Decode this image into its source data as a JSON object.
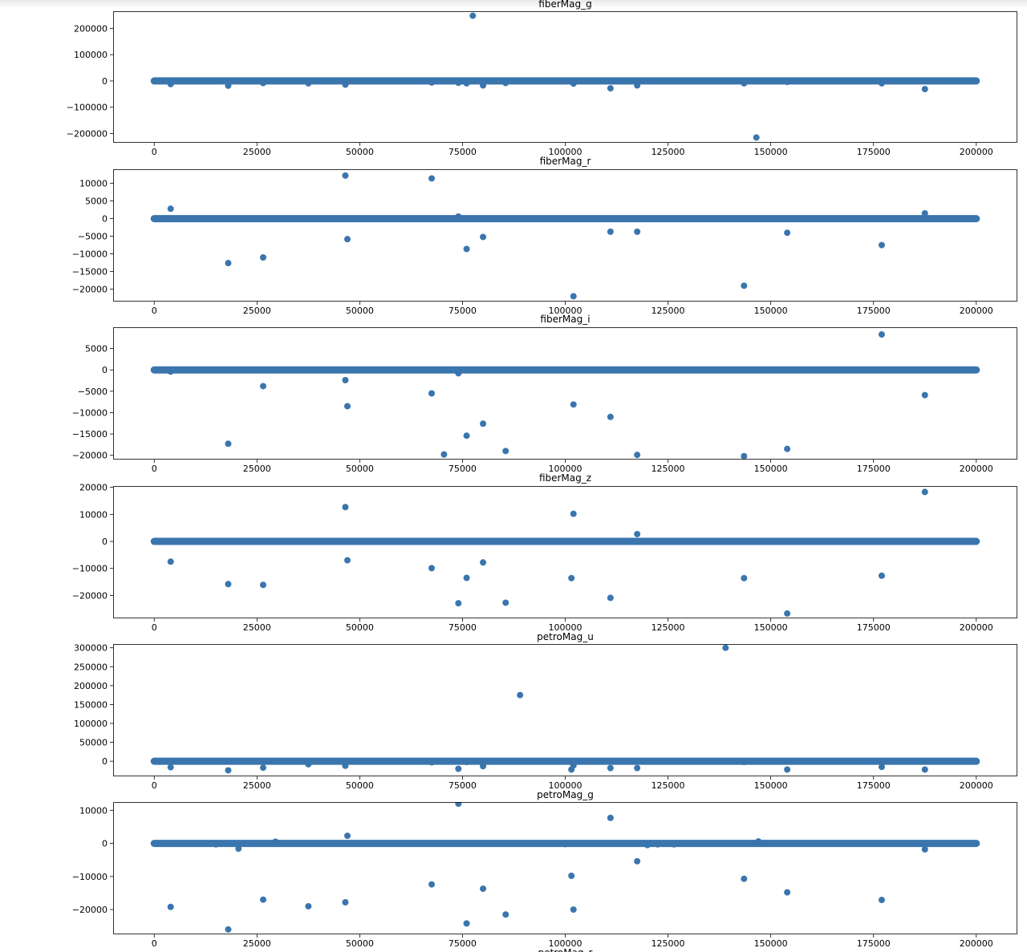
{
  "chart_data": [
    {
      "type": "scatter",
      "title": "fiberMag_g",
      "color": "#3a75ae",
      "xlim": [
        -10000,
        210000
      ],
      "ylim": [
        -235000,
        265000
      ],
      "xticks": [
        0,
        25000,
        50000,
        75000,
        100000,
        125000,
        150000,
        175000,
        200000
      ],
      "yticks": [
        -200000,
        -100000,
        0,
        100000,
        200000
      ],
      "baseline": {
        "x_start": 0,
        "x_end": 200000,
        "y": 0
      },
      "points": [
        [
          4000,
          -12000
        ],
        [
          18000,
          -18000
        ],
        [
          26500,
          -8000
        ],
        [
          37500,
          -9000
        ],
        [
          46500,
          -14000
        ],
        [
          67500,
          -6000
        ],
        [
          74000,
          -7000
        ],
        [
          76000,
          -9000
        ],
        [
          77500,
          248000
        ],
        [
          80000,
          -17000
        ],
        [
          85500,
          -8000
        ],
        [
          102000,
          -10000
        ],
        [
          111000,
          -28000
        ],
        [
          117500,
          -17000
        ],
        [
          143500,
          -9000
        ],
        [
          146500,
          -215000
        ],
        [
          154000,
          -4000
        ],
        [
          177000,
          -9000
        ],
        [
          187500,
          -31000
        ]
      ]
    },
    {
      "type": "scatter",
      "title": "fiberMag_r",
      "color": "#3a75ae",
      "xlim": [
        -10000,
        210000
      ],
      "ylim": [
        -23500,
        14000
      ],
      "xticks": [
        0,
        25000,
        50000,
        75000,
        100000,
        125000,
        150000,
        175000,
        200000
      ],
      "yticks": [
        -20000,
        -15000,
        -10000,
        -5000,
        0,
        5000,
        10000
      ],
      "baseline": {
        "x_start": 0,
        "x_end": 200000,
        "y": 0
      },
      "points": [
        [
          4000,
          2800
        ],
        [
          18000,
          -12600
        ],
        [
          26500,
          -11000
        ],
        [
          46500,
          12200
        ],
        [
          47000,
          -5800
        ],
        [
          67500,
          11400
        ],
        [
          74000,
          600
        ],
        [
          76000,
          -8600
        ],
        [
          80000,
          -5200
        ],
        [
          102000,
          -22000
        ],
        [
          111000,
          -3700
        ],
        [
          117500,
          -3700
        ],
        [
          143500,
          -19000
        ],
        [
          154000,
          -4000
        ],
        [
          177000,
          -7500
        ],
        [
          187500,
          1500
        ]
      ]
    },
    {
      "type": "scatter",
      "title": "fiberMag_i",
      "color": "#3a75ae",
      "xlim": [
        -10000,
        210000
      ],
      "ylim": [
        -21000,
        10000
      ],
      "xticks": [
        0,
        25000,
        50000,
        75000,
        100000,
        125000,
        150000,
        175000,
        200000
      ],
      "yticks": [
        -20000,
        -15000,
        -10000,
        -5000,
        0,
        5000
      ],
      "baseline": {
        "x_start": 0,
        "x_end": 200000,
        "y": 0
      },
      "points": [
        [
          4000,
          -400
        ],
        [
          18000,
          -17300
        ],
        [
          26500,
          -3800
        ],
        [
          46500,
          -2400
        ],
        [
          47000,
          -8500
        ],
        [
          67500,
          -5500
        ],
        [
          70500,
          -19800
        ],
        [
          74000,
          -800
        ],
        [
          76000,
          -15400
        ],
        [
          80000,
          -12600
        ],
        [
          85500,
          -19000
        ],
        [
          102000,
          -8100
        ],
        [
          111000,
          -11000
        ],
        [
          117500,
          -19900
        ],
        [
          143500,
          -20200
        ],
        [
          154000,
          -18500
        ],
        [
          177000,
          8300
        ],
        [
          187500,
          -5900
        ]
      ]
    },
    {
      "type": "scatter",
      "title": "fiberMag_z",
      "color": "#3a75ae",
      "xlim": [
        -10000,
        210000
      ],
      "ylim": [
        -28500,
        20500
      ],
      "xticks": [
        0,
        25000,
        50000,
        75000,
        100000,
        125000,
        150000,
        175000,
        200000
      ],
      "yticks": [
        -20000,
        -10000,
        0,
        10000,
        20000
      ],
      "baseline": {
        "x_start": 0,
        "x_end": 200000,
        "y": 0
      },
      "points": [
        [
          4000,
          -7500
        ],
        [
          18000,
          -15800
        ],
        [
          26500,
          -16100
        ],
        [
          46500,
          12700
        ],
        [
          47000,
          -7000
        ],
        [
          67500,
          -9900
        ],
        [
          74000,
          -22900
        ],
        [
          76000,
          -13500
        ],
        [
          80000,
          -7800
        ],
        [
          85500,
          -22700
        ],
        [
          101500,
          -13600
        ],
        [
          102000,
          10200
        ],
        [
          111000,
          -20900
        ],
        [
          117500,
          2700
        ],
        [
          143500,
          -13600
        ],
        [
          154000,
          -26700
        ],
        [
          177000,
          -12700
        ],
        [
          187500,
          18300
        ]
      ]
    },
    {
      "type": "scatter",
      "title": "petroMag_u",
      "color": "#3a75ae",
      "xlim": [
        -10000,
        210000
      ],
      "ylim": [
        -40000,
        310000
      ],
      "xticks": [
        0,
        25000,
        50000,
        75000,
        100000,
        125000,
        150000,
        175000,
        200000
      ],
      "yticks": [
        0,
        50000,
        100000,
        150000,
        200000,
        250000,
        300000
      ],
      "baseline": {
        "x_start": 0,
        "x_end": 200000,
        "y": 0
      },
      "points": [
        [
          4000,
          -16000
        ],
        [
          18000,
          -24000
        ],
        [
          26500,
          -17000
        ],
        [
          37500,
          -8000
        ],
        [
          46500,
          -12000
        ],
        [
          67500,
          -3000
        ],
        [
          74000,
          -20000
        ],
        [
          76000,
          -2000
        ],
        [
          80000,
          -13000
        ],
        [
          86000,
          -1000
        ],
        [
          89000,
          175000
        ],
        [
          101500,
          -22000
        ],
        [
          102000,
          -11000
        ],
        [
          111000,
          -18000
        ],
        [
          117500,
          -18000
        ],
        [
          139000,
          300000
        ],
        [
          143500,
          -2000
        ],
        [
          154000,
          -22000
        ],
        [
          177000,
          -15000
        ],
        [
          187500,
          -22000
        ]
      ]
    },
    {
      "type": "scatter",
      "title": "petroMag_g",
      "color": "#3a75ae",
      "xlim": [
        -10000,
        210000
      ],
      "ylim": [
        -27500,
        12500
      ],
      "xticks": [
        0,
        25000,
        50000,
        75000,
        100000,
        125000,
        150000,
        175000,
        200000
      ],
      "yticks": [
        -20000,
        -10000,
        0,
        10000
      ],
      "baseline": {
        "x_start": 0,
        "x_end": 200000,
        "y": 0
      },
      "points": [
        [
          4000,
          -19200
        ],
        [
          15000,
          -300
        ],
        [
          18000,
          -26000
        ],
        [
          20500,
          -1600
        ],
        [
          26500,
          -17000
        ],
        [
          29500,
          500
        ],
        [
          37500,
          -19000
        ],
        [
          46500,
          -17800
        ],
        [
          47000,
          2300
        ],
        [
          67500,
          -12400
        ],
        [
          74000,
          12000
        ],
        [
          76000,
          -24200
        ],
        [
          80000,
          -13700
        ],
        [
          85500,
          -21500
        ],
        [
          100000,
          -200
        ],
        [
          101500,
          -9800
        ],
        [
          102000,
          -20000
        ],
        [
          111000,
          7700
        ],
        [
          117500,
          -5400
        ],
        [
          120000,
          -500
        ],
        [
          122500,
          -300
        ],
        [
          126500,
          -300
        ],
        [
          143500,
          -10700
        ],
        [
          147000,
          600
        ],
        [
          154000,
          -14800
        ],
        [
          177000,
          -17100
        ],
        [
          187500,
          -1800
        ]
      ]
    },
    {
      "type": "scatter",
      "title": "petroMag_r",
      "color": "#3a75ae"
    }
  ]
}
